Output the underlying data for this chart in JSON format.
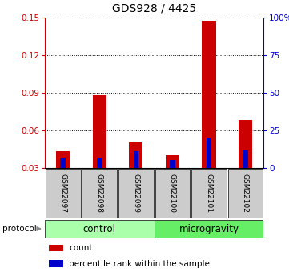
{
  "title": "GDS928 / 4425",
  "samples": [
    "GSM22097",
    "GSM22098",
    "GSM22099",
    "GSM22100",
    "GSM22101",
    "GSM22102"
  ],
  "count_values": [
    0.043,
    0.088,
    0.05,
    0.04,
    0.147,
    0.068
  ],
  "percentile_values": [
    0.038,
    0.038,
    0.043,
    0.036,
    0.054,
    0.044
  ],
  "ylim_left": [
    0.03,
    0.15
  ],
  "yticks_left": [
    0.03,
    0.06,
    0.09,
    0.12,
    0.15
  ],
  "ylim_right": [
    0,
    100
  ],
  "yticks_right": [
    0,
    25,
    50,
    75,
    100
  ],
  "ytick_labels_right": [
    "0",
    "25",
    "50",
    "75",
    "100%"
  ],
  "left_color": "#cc0000",
  "right_color": "#0000cc",
  "bar_color_count": "#cc0000",
  "bar_color_percentile": "#0000cc",
  "baseline": 0.03,
  "protocol_labels": [
    "control",
    "microgravity"
  ],
  "protocol_colors_hex": [
    "#aaffaa",
    "#66ee66"
  ],
  "sample_box_color": "#cccccc",
  "legend_items": [
    "count",
    "percentile rank within the sample"
  ],
  "title_fontsize": 10,
  "tick_fontsize": 7.5,
  "sample_fontsize": 6.5,
  "protocol_fontsize": 8.5,
  "legend_fontsize": 7.5
}
